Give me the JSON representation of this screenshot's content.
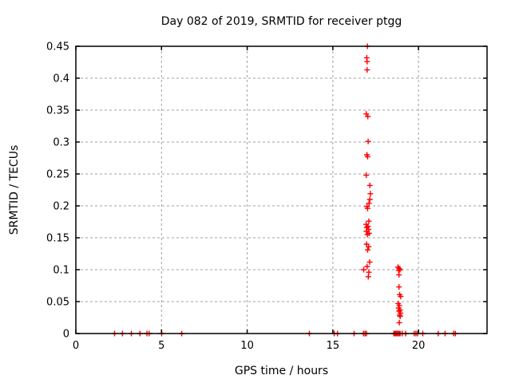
{
  "colors": {
    "marker": "#ff0000",
    "grid": "#a0a0a0",
    "axis": "#000000",
    "background": "#ffffff"
  },
  "chart_data": {
    "type": "scatter",
    "title": "Day 082 of 2019, SRMTID for receiver ptgg",
    "xlabel": "GPS time / hours",
    "ylabel": "SRMTID / TECUs",
    "xlim": [
      0,
      24
    ],
    "ylim": [
      0,
      0.45
    ],
    "xticks": [
      0,
      5,
      10,
      15,
      20
    ],
    "yticks": [
      0,
      0.05,
      0.1,
      0.15,
      0.2,
      0.25,
      0.3,
      0.35,
      0.4,
      0.45
    ],
    "xtick_labels": [
      "0",
      "5",
      "10",
      "15",
      "20"
    ],
    "ytick_labels": [
      "0",
      "0.05",
      "0.1",
      "0.15",
      "0.2",
      "0.25",
      "0.3",
      "0.35",
      "0.4",
      "0.45"
    ],
    "grid": true,
    "legend": "none",
    "marker": "plus",
    "series": [
      {
        "name": "SRMTID",
        "points": [
          [
            17.02,
            0.45
          ],
          [
            16.98,
            0.432
          ],
          [
            17.0,
            0.426
          ],
          [
            17.0,
            0.413
          ],
          [
            16.95,
            0.344
          ],
          [
            17.04,
            0.34
          ],
          [
            17.06,
            0.301
          ],
          [
            16.99,
            0.28
          ],
          [
            17.03,
            0.277
          ],
          [
            16.95,
            0.248
          ],
          [
            17.16,
            0.232
          ],
          [
            17.19,
            0.219
          ],
          [
            17.16,
            0.21
          ],
          [
            17.11,
            0.204
          ],
          [
            16.99,
            0.199
          ],
          [
            17.03,
            0.196
          ],
          [
            17.1,
            0.176
          ],
          [
            16.94,
            0.171
          ],
          [
            17.05,
            0.168
          ],
          [
            16.98,
            0.166
          ],
          [
            17.08,
            0.163
          ],
          [
            16.96,
            0.16
          ],
          [
            17.12,
            0.157
          ],
          [
            17.02,
            0.155
          ],
          [
            16.97,
            0.14
          ],
          [
            17.09,
            0.136
          ],
          [
            17.03,
            0.131
          ],
          [
            17.15,
            0.112
          ],
          [
            17.0,
            0.105
          ],
          [
            16.8,
            0.1
          ],
          [
            17.1,
            0.096
          ],
          [
            17.07,
            0.089
          ],
          [
            18.8,
            0.104
          ],
          [
            18.87,
            0.102
          ],
          [
            18.92,
            0.1
          ],
          [
            18.84,
            0.099
          ],
          [
            18.86,
            0.092
          ],
          [
            18.86,
            0.073
          ],
          [
            18.9,
            0.061
          ],
          [
            18.96,
            0.058
          ],
          [
            18.81,
            0.047
          ],
          [
            18.88,
            0.044
          ],
          [
            18.84,
            0.04
          ],
          [
            18.92,
            0.037
          ],
          [
            18.87,
            0.035
          ],
          [
            18.95,
            0.032
          ],
          [
            18.9,
            0.029
          ],
          [
            18.93,
            0.027
          ],
          [
            18.88,
            0.017
          ],
          [
            2.26,
            0
          ],
          [
            2.72,
            0
          ],
          [
            3.24,
            0
          ],
          [
            3.74,
            0
          ],
          [
            4.15,
            0
          ],
          [
            4.28,
            0
          ],
          [
            5.01,
            0
          ],
          [
            6.18,
            0
          ],
          [
            13.63,
            0
          ],
          [
            15.08,
            0
          ],
          [
            15.27,
            0
          ],
          [
            16.24,
            0
          ],
          [
            16.79,
            0
          ],
          [
            16.88,
            0
          ],
          [
            16.96,
            0
          ],
          [
            18.56,
            0
          ],
          [
            18.62,
            0
          ],
          [
            18.68,
            0
          ],
          [
            18.74,
            0
          ],
          [
            18.8,
            0
          ],
          [
            18.87,
            0
          ],
          [
            18.93,
            0
          ],
          [
            19.05,
            0
          ],
          [
            19.25,
            0
          ],
          [
            19.75,
            0
          ],
          [
            19.85,
            0
          ],
          [
            19.95,
            0
          ],
          [
            20.25,
            0
          ],
          [
            21.15,
            0
          ],
          [
            21.55,
            0
          ],
          [
            22.05,
            0
          ],
          [
            22.15,
            0
          ]
        ]
      }
    ]
  }
}
